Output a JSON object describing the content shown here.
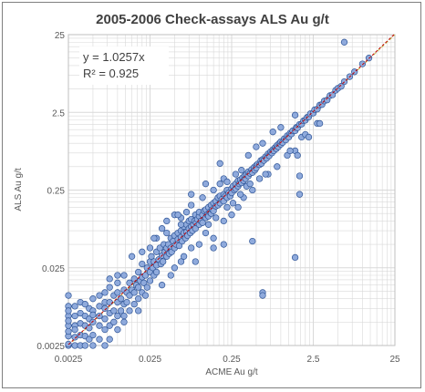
{
  "chart_data": {
    "type": "scatter",
    "title": "2005-2006 Check-assays ALS Au g/t",
    "xlabel": "ACME Au g/t",
    "ylabel": "ALS Au g/t",
    "xscale": "log",
    "yscale": "log",
    "xlim": [
      0.0025,
      25
    ],
    "ylim": [
      0.0025,
      25
    ],
    "x_ticks": [
      "0.0025",
      "0.025",
      "0.25",
      "2.5",
      "25"
    ],
    "y_ticks": [
      "0.0025",
      "0.025",
      "0.25",
      "2.5",
      "25"
    ],
    "grid": true,
    "trendline": {
      "slope": 1.0257,
      "equation": "y = 1.0257x",
      "r2_label": "R² = 0.925"
    },
    "colors": {
      "marker_fill": "#8faadc",
      "marker_edge": "#2f5597",
      "trendline": "#c00000",
      "equality_line": "#c9c96b",
      "grid": "#d9d9d9"
    },
    "points": [
      [
        0.0025,
        0.0025
      ],
      [
        0.0025,
        0.0033
      ],
      [
        0.0025,
        0.0045
      ],
      [
        0.0025,
        0.006
      ],
      [
        0.0025,
        0.008
      ],
      [
        0.0025,
        0.011
      ],
      [
        0.0025,
        0.0026
      ],
      [
        0.0025,
        0.0038
      ],
      [
        0.0025,
        0.0052
      ],
      [
        0.0025,
        0.007
      ],
      [
        0.003,
        0.0025
      ],
      [
        0.003,
        0.0032
      ],
      [
        0.003,
        0.0045
      ],
      [
        0.003,
        0.006
      ],
      [
        0.003,
        0.008
      ],
      [
        0.003,
        0.004
      ],
      [
        0.0035,
        0.0025
      ],
      [
        0.0035,
        0.0034
      ],
      [
        0.0035,
        0.0048
      ],
      [
        0.0035,
        0.0065
      ],
      [
        0.0035,
        0.009
      ],
      [
        0.004,
        0.0025
      ],
      [
        0.004,
        0.0033
      ],
      [
        0.004,
        0.0045
      ],
      [
        0.004,
        0.006
      ],
      [
        0.004,
        0.0085
      ],
      [
        0.0045,
        0.003
      ],
      [
        0.0045,
        0.0042
      ],
      [
        0.0045,
        0.0055
      ],
      [
        0.0045,
        0.0075
      ],
      [
        0.005,
        0.0025
      ],
      [
        0.005,
        0.0034
      ],
      [
        0.005,
        0.005
      ],
      [
        0.005,
        0.007
      ],
      [
        0.005,
        0.01
      ],
      [
        0.005,
        0.0062
      ],
      [
        0.006,
        0.003
      ],
      [
        0.006,
        0.0045
      ],
      [
        0.006,
        0.006
      ],
      [
        0.006,
        0.008
      ],
      [
        0.006,
        0.011
      ],
      [
        0.007,
        0.0025
      ],
      [
        0.007,
        0.004
      ],
      [
        0.007,
        0.0055
      ],
      [
        0.007,
        0.0075
      ],
      [
        0.007,
        0.009
      ],
      [
        0.007,
        0.012
      ],
      [
        0.008,
        0.003
      ],
      [
        0.008,
        0.0045
      ],
      [
        0.008,
        0.0065
      ],
      [
        0.008,
        0.009
      ],
      [
        0.008,
        0.014
      ],
      [
        0.009,
        0.005
      ],
      [
        0.009,
        0.007
      ],
      [
        0.009,
        0.011
      ],
      [
        0.01,
        0.004
      ],
      [
        0.01,
        0.006
      ],
      [
        0.01,
        0.009
      ],
      [
        0.01,
        0.012
      ],
      [
        0.01,
        0.016
      ],
      [
        0.011,
        0.007
      ],
      [
        0.011,
        0.01
      ],
      [
        0.012,
        0.005
      ],
      [
        0.012,
        0.0085
      ],
      [
        0.012,
        0.013
      ],
      [
        0.012,
        0.02
      ],
      [
        0.013,
        0.009
      ],
      [
        0.013,
        0.012
      ],
      [
        0.014,
        0.007
      ],
      [
        0.014,
        0.011
      ],
      [
        0.014,
        0.016
      ],
      [
        0.015,
        0.013
      ],
      [
        0.016,
        0.0085
      ],
      [
        0.016,
        0.012
      ],
      [
        0.016,
        0.018
      ],
      [
        0.017,
        0.015
      ],
      [
        0.018,
        0.01
      ],
      [
        0.018,
        0.014
      ],
      [
        0.018,
        0.022
      ],
      [
        0.019,
        0.017
      ],
      [
        0.02,
        0.012
      ],
      [
        0.02,
        0.019
      ],
      [
        0.02,
        0.028
      ],
      [
        0.021,
        0.016
      ],
      [
        0.022,
        0.02
      ],
      [
        0.023,
        0.014
      ],
      [
        0.023,
        0.025
      ],
      [
        0.025,
        0.022
      ],
      [
        0.025,
        0.03
      ],
      [
        0.025,
        0.017
      ],
      [
        0.026,
        0.035
      ],
      [
        0.027,
        0.025
      ],
      [
        0.028,
        0.02
      ],
      [
        0.028,
        0.03
      ],
      [
        0.03,
        0.027
      ],
      [
        0.03,
        0.04
      ],
      [
        0.03,
        0.022
      ],
      [
        0.032,
        0.032
      ],
      [
        0.033,
        0.045
      ],
      [
        0.034,
        0.028
      ],
      [
        0.035,
        0.036
      ],
      [
        0.036,
        0.03
      ],
      [
        0.037,
        0.05
      ],
      [
        0.038,
        0.04
      ],
      [
        0.04,
        0.035
      ],
      [
        0.04,
        0.045
      ],
      [
        0.042,
        0.05
      ],
      [
        0.043,
        0.038
      ],
      [
        0.045,
        0.045
      ],
      [
        0.045,
        0.06
      ],
      [
        0.046,
        0.04
      ],
      [
        0.048,
        0.055
      ],
      [
        0.05,
        0.045
      ],
      [
        0.05,
        0.065
      ],
      [
        0.052,
        0.05
      ],
      [
        0.055,
        0.058
      ],
      [
        0.055,
        0.07
      ],
      [
        0.057,
        0.048
      ],
      [
        0.06,
        0.062
      ],
      [
        0.06,
        0.075
      ],
      [
        0.062,
        0.055
      ],
      [
        0.065,
        0.07
      ],
      [
        0.065,
        0.085
      ],
      [
        0.068,
        0.06
      ],
      [
        0.07,
        0.072
      ],
      [
        0.07,
        0.09
      ],
      [
        0.072,
        0.065
      ],
      [
        0.075,
        0.08
      ],
      [
        0.075,
        0.1
      ],
      [
        0.078,
        0.07
      ],
      [
        0.08,
        0.085
      ],
      [
        0.08,
        0.105
      ],
      [
        0.083,
        0.075
      ],
      [
        0.085,
        0.09
      ],
      [
        0.088,
        0.1
      ],
      [
        0.09,
        0.08
      ],
      [
        0.09,
        0.12
      ],
      [
        0.092,
        0.095
      ],
      [
        0.095,
        0.105
      ],
      [
        0.1,
        0.09
      ],
      [
        0.1,
        0.115
      ],
      [
        0.1,
        0.13
      ],
      [
        0.105,
        0.1
      ],
      [
        0.11,
        0.12
      ],
      [
        0.11,
        0.095
      ],
      [
        0.115,
        0.135
      ],
      [
        0.12,
        0.11
      ],
      [
        0.12,
        0.14
      ],
      [
        0.125,
        0.12
      ],
      [
        0.13,
        0.15
      ],
      [
        0.13,
        0.115
      ],
      [
        0.135,
        0.13
      ],
      [
        0.14,
        0.16
      ],
      [
        0.14,
        0.125
      ],
      [
        0.145,
        0.14
      ],
      [
        0.15,
        0.17
      ],
      [
        0.15,
        0.135
      ],
      [
        0.16,
        0.155
      ],
      [
        0.16,
        0.18
      ],
      [
        0.17,
        0.16
      ],
      [
        0.17,
        0.2
      ],
      [
        0.18,
        0.17
      ],
      [
        0.18,
        0.21
      ],
      [
        0.19,
        0.19
      ],
      [
        0.2,
        0.18
      ],
      [
        0.2,
        0.22
      ],
      [
        0.21,
        0.21
      ],
      [
        0.22,
        0.2
      ],
      [
        0.22,
        0.25
      ],
      [
        0.23,
        0.23
      ],
      [
        0.24,
        0.21
      ],
      [
        0.25,
        0.26
      ],
      [
        0.25,
        0.23
      ],
      [
        0.26,
        0.28
      ],
      [
        0.27,
        0.25
      ],
      [
        0.28,
        0.3
      ],
      [
        0.28,
        0.26
      ],
      [
        0.3,
        0.28
      ],
      [
        0.3,
        0.33
      ],
      [
        0.31,
        0.3
      ],
      [
        0.32,
        0.34
      ],
      [
        0.33,
        0.31
      ],
      [
        0.34,
        0.36
      ],
      [
        0.35,
        0.33
      ],
      [
        0.36,
        0.38
      ],
      [
        0.37,
        0.35
      ],
      [
        0.38,
        0.4
      ],
      [
        0.4,
        0.38
      ],
      [
        0.4,
        0.43
      ],
      [
        0.42,
        0.41
      ],
      [
        0.44,
        0.46
      ],
      [
        0.45,
        0.42
      ],
      [
        0.47,
        0.49
      ],
      [
        0.48,
        0.45
      ],
      [
        0.5,
        0.52
      ],
      [
        0.5,
        0.48
      ],
      [
        0.52,
        0.54
      ],
      [
        0.55,
        0.53
      ],
      [
        0.57,
        0.6
      ],
      [
        0.58,
        0.55
      ],
      [
        0.6,
        0.62
      ],
      [
        0.62,
        0.6
      ],
      [
        0.65,
        0.67
      ],
      [
        0.67,
        0.64
      ],
      [
        0.7,
        0.73
      ],
      [
        0.72,
        0.69
      ],
      [
        0.75,
        0.78
      ],
      [
        0.78,
        0.75
      ],
      [
        0.8,
        0.83
      ],
      [
        0.82,
        0.8
      ],
      [
        0.85,
        0.88
      ],
      [
        0.88,
        0.85
      ],
      [
        0.9,
        0.94
      ],
      [
        0.93,
        0.9
      ],
      [
        0.96,
        1.0
      ],
      [
        1.0,
        0.97
      ],
      [
        1.0,
        1.05
      ],
      [
        1.05,
        1.02
      ],
      [
        1.1,
        1.14
      ],
      [
        1.15,
        1.1
      ],
      [
        1.2,
        1.25
      ],
      [
        1.25,
        1.2
      ],
      [
        1.3,
        1.35
      ],
      [
        1.35,
        1.32
      ],
      [
        1.4,
        1.45
      ],
      [
        1.5,
        1.45
      ],
      [
        1.55,
        1.6
      ],
      [
        1.6,
        1.58
      ],
      [
        1.7,
        1.75
      ],
      [
        1.8,
        1.76
      ],
      [
        1.9,
        1.95
      ],
      [
        2.0,
        1.98
      ],
      [
        2.1,
        2.15
      ],
      [
        2.2,
        2.18
      ],
      [
        2.3,
        2.4
      ],
      [
        2.5,
        2.45
      ],
      [
        2.6,
        2.7
      ],
      [
        2.8,
        2.75
      ],
      [
        3.0,
        3.1
      ],
      [
        3.2,
        3.15
      ],
      [
        3.4,
        3.5
      ],
      [
        3.7,
        3.6
      ],
      [
        4.0,
        4.1
      ],
      [
        4.3,
        4.2
      ],
      [
        4.7,
        4.8
      ],
      [
        5.0,
        5.1
      ],
      [
        5.5,
        5.4
      ],
      [
        6.0,
        6.2
      ],
      [
        7.0,
        7.2
      ],
      [
        8.0,
        8.3
      ],
      [
        10.0,
        10.5
      ],
      [
        12.0,
        12.5
      ],
      [
        0.05,
        0.12
      ],
      [
        0.04,
        0.1
      ],
      [
        0.035,
        0.015
      ],
      [
        0.09,
        0.03
      ],
      [
        0.15,
        0.06
      ],
      [
        0.2,
        0.35
      ],
      [
        0.3,
        0.15
      ],
      [
        0.12,
        0.07
      ],
      [
        0.18,
        0.3
      ],
      [
        0.25,
        0.12
      ],
      [
        0.06,
        0.03
      ],
      [
        0.08,
        0.16
      ],
      [
        0.4,
        0.7
      ],
      [
        0.5,
        0.9
      ],
      [
        0.7,
        0.4
      ],
      [
        0.9,
        0.5
      ],
      [
        1.2,
        0.7
      ],
      [
        1.5,
        0.8
      ],
      [
        1.8,
        1.2
      ],
      [
        2.0,
        1.3
      ],
      [
        0.6,
        1.0
      ],
      [
        1.0,
        1.6
      ],
      [
        1.5,
        2.3
      ],
      [
        2.8,
        1.8
      ],
      [
        0.025,
        0.045
      ],
      [
        0.03,
        0.06
      ],
      [
        0.045,
        0.02
      ],
      [
        0.1,
        0.05
      ],
      [
        0.07,
        0.13
      ],
      [
        0.11,
        0.2
      ],
      [
        0.15,
        0.25
      ],
      [
        0.2,
        0.1
      ],
      [
        0.35,
        0.2
      ],
      [
        0.45,
        0.25
      ],
      [
        0.55,
        0.35
      ],
      [
        0.65,
        0.4
      ],
      [
        0.04,
        0.07
      ],
      [
        0.05,
        0.025
      ],
      [
        0.06,
        0.11
      ],
      [
        0.065,
        0.035
      ],
      [
        0.08,
        0.045
      ],
      [
        0.13,
        0.09
      ],
      [
        0.16,
        0.11
      ],
      [
        0.22,
        0.15
      ],
      [
        0.26,
        0.17
      ],
      [
        0.32,
        0.22
      ],
      [
        0.38,
        0.28
      ],
      [
        0.42,
        0.3
      ],
      [
        0.22,
        0.32
      ],
      [
        0.28,
        0.4
      ],
      [
        0.33,
        0.45
      ],
      [
        0.015,
        0.035
      ],
      [
        0.012,
        0.006
      ],
      [
        0.02,
        0.04
      ],
      [
        0.01,
        0.02
      ],
      [
        0.008,
        0.018
      ],
      [
        0.018,
        0.007
      ],
      [
        0.022,
        0.011
      ],
      [
        0.035,
        0.08
      ],
      [
        0.028,
        0.06
      ],
      [
        0.18,
        0.55
      ],
      [
        0.06,
        0.09
      ],
      [
        0.055,
        0.12
      ],
      [
        1.7,
        0.38
      ],
      [
        1.7,
        0.22
      ],
      [
        0.6,
        0.012
      ],
      [
        0.6,
        0.011
      ],
      [
        1.5,
        0.034
      ],
      [
        0.45,
        0.055
      ],
      [
        6.0,
        20.0
      ],
      [
        1.3,
        0.8
      ],
      [
        1.6,
        0.7
      ],
      [
        2.2,
        1.2
      ],
      [
        0.8,
        1.4
      ],
      [
        3.0,
        1.8
      ],
      [
        0.12,
        0.3
      ],
      [
        0.15,
        0.045
      ],
      [
        0.2,
        0.05
      ],
      [
        0.08,
        0.22
      ]
    ]
  }
}
